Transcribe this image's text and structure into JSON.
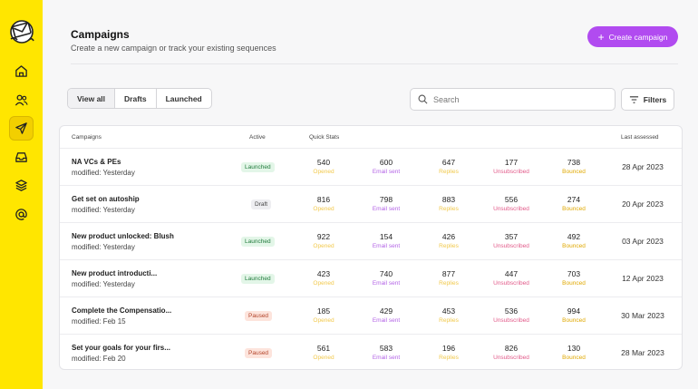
{
  "header": {
    "title": "Campaigns",
    "subtitle": "Create a new campaign or track your existing sequences",
    "create_label": "Create campaign"
  },
  "tabs": [
    {
      "label": "View all",
      "active": true
    },
    {
      "label": "Drafts",
      "active": false
    },
    {
      "label": "Launched",
      "active": false
    }
  ],
  "search": {
    "placeholder": "Search",
    "value": ""
  },
  "filters_label": "Filters",
  "sidebar": {
    "icons": [
      "home-icon",
      "users-icon",
      "send-icon",
      "inbox-icon",
      "layers-icon",
      "at-sign-icon"
    ],
    "active_index": 2
  },
  "table": {
    "headers": {
      "campaigns": "Campaigns",
      "active": "Active",
      "quick_stats": "Quick Stats",
      "last_assessed": "Last assessed"
    },
    "stat_labels": {
      "opened": "Opened",
      "sent": "Email sent",
      "replies": "Replies",
      "unsub": "Unsubscribed",
      "bounced": "Bounced"
    },
    "rows": [
      {
        "name": "NA VCs & PEs",
        "modified": "modified: Yesterday",
        "status": "Launched",
        "opened": "540",
        "sent": "600",
        "replies": "647",
        "unsub": "177",
        "bounced": "738",
        "date": "28 Apr 2023"
      },
      {
        "name": "Get set on autoship",
        "modified": "modified: Yesterday",
        "status": "Draft",
        "opened": "816",
        "sent": "798",
        "replies": "883",
        "unsub": "556",
        "bounced": "274",
        "date": "20 Apr 2023"
      },
      {
        "name": "New product unlocked: Blush",
        "modified": "modified: Yesterday",
        "status": "Launched",
        "opened": "922",
        "sent": "154",
        "replies": "426",
        "unsub": "357",
        "bounced": "492",
        "date": "03  Apr 2023"
      },
      {
        "name": "New product introducti...",
        "modified": "modified: Yesterday",
        "status": "Launched",
        "opened": "423",
        "sent": "740",
        "replies": "877",
        "unsub": "447",
        "bounced": "703",
        "date": "12 Apr 2023"
      },
      {
        "name": "Complete the Compensatio...",
        "modified": "modified: Feb 15",
        "status": "Paused",
        "opened": "185",
        "sent": "429",
        "replies": "453",
        "unsub": "536",
        "bounced": "994",
        "date": "30 Mar 2023"
      },
      {
        "name": "Set your goals for your firs...",
        "modified": "modified: Feb 20",
        "status": "Paused",
        "opened": "561",
        "sent": "583",
        "replies": "196",
        "unsub": "826",
        "bounced": "130",
        "date": "28 Mar 2023"
      }
    ]
  },
  "colors": {
    "sidebar": "#ffe600",
    "accent": "#b14bf0"
  }
}
